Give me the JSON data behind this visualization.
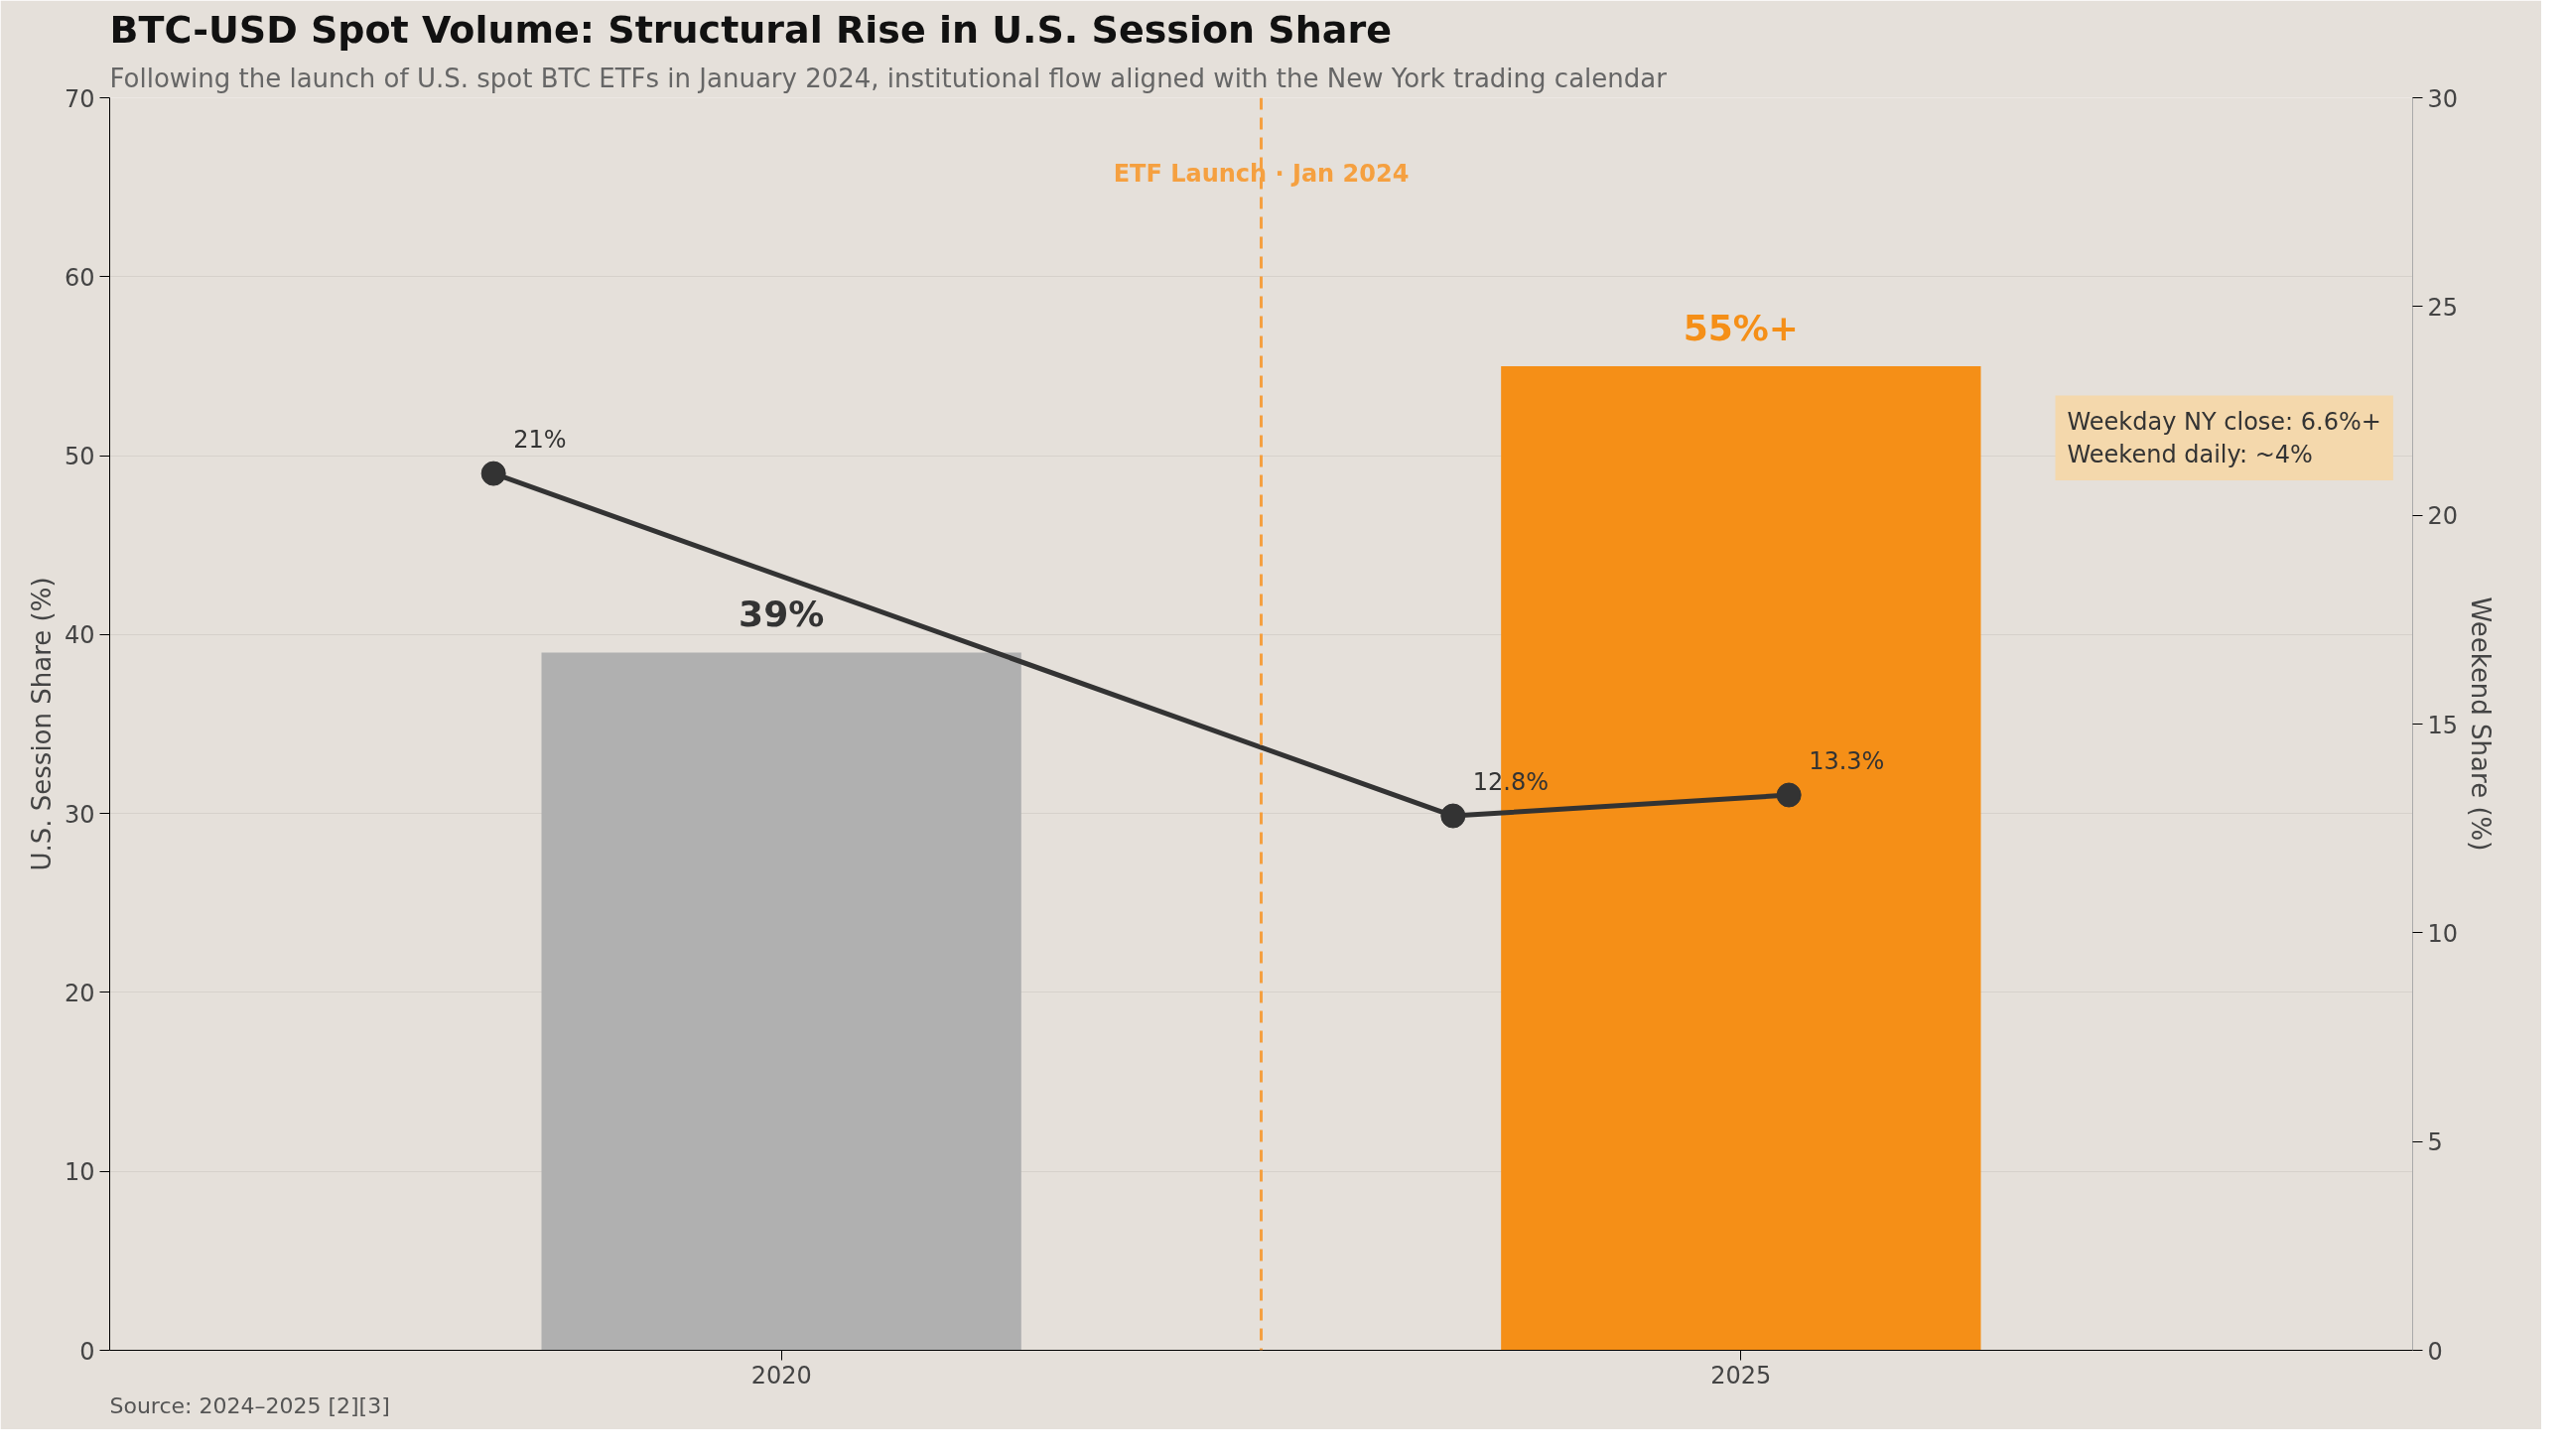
{
  "chart_data": {
    "type": "bar",
    "title": "BTC-USD Spot Volume: Structural Rise in U.S. Session Share",
    "subtitle": "Following the launch of U.S. spot BTC ETFs in January 2024, institutional flow aligned with the New York trading calendar",
    "ylabel": "U.S. Session Share (%)",
    "y2label": "Weekend Share (%)",
    "x": [
      2020,
      2025
    ],
    "xlim": [
      2016.5,
      2028.5
    ],
    "xticks": [
      2020,
      2025
    ],
    "ylim": [
      0,
      70
    ],
    "yticks": [
      0,
      10,
      20,
      30,
      40,
      50,
      60,
      70
    ],
    "y2lim": [
      0,
      30
    ],
    "y2ticks": [
      0,
      5,
      10,
      15,
      20,
      25,
      30
    ],
    "series": [
      {
        "colors": [
          "#b0b0b0",
          "#f58f17"
        ],
        "values": [
          39,
          55
        ],
        "value_labels": [
          "39%",
          "55%+"
        ]
      },
      {
        "type": "line",
        "axis": "y2",
        "color": "#333333",
        "x": [
          2018.5,
          2023.5,
          2025.25
        ],
        "values": [
          21,
          12.8,
          13.3
        ],
        "value_labels": [
          "21%",
          "12.8%",
          "13.3%"
        ],
        "marker": "circle"
      }
    ],
    "ref_lines": [
      {
        "axis": "x",
        "value": 2022.5,
        "label": "ETF Launch · Jan 2024",
        "color": "#f5a040",
        "line_style": "dashed"
      }
    ],
    "annotations": [
      "Weekday NY close: 6.6%+\nWeekend daily: ~4%",
      "Source: 2024–2025 [2][3]"
    ],
    "grid": "y"
  }
}
